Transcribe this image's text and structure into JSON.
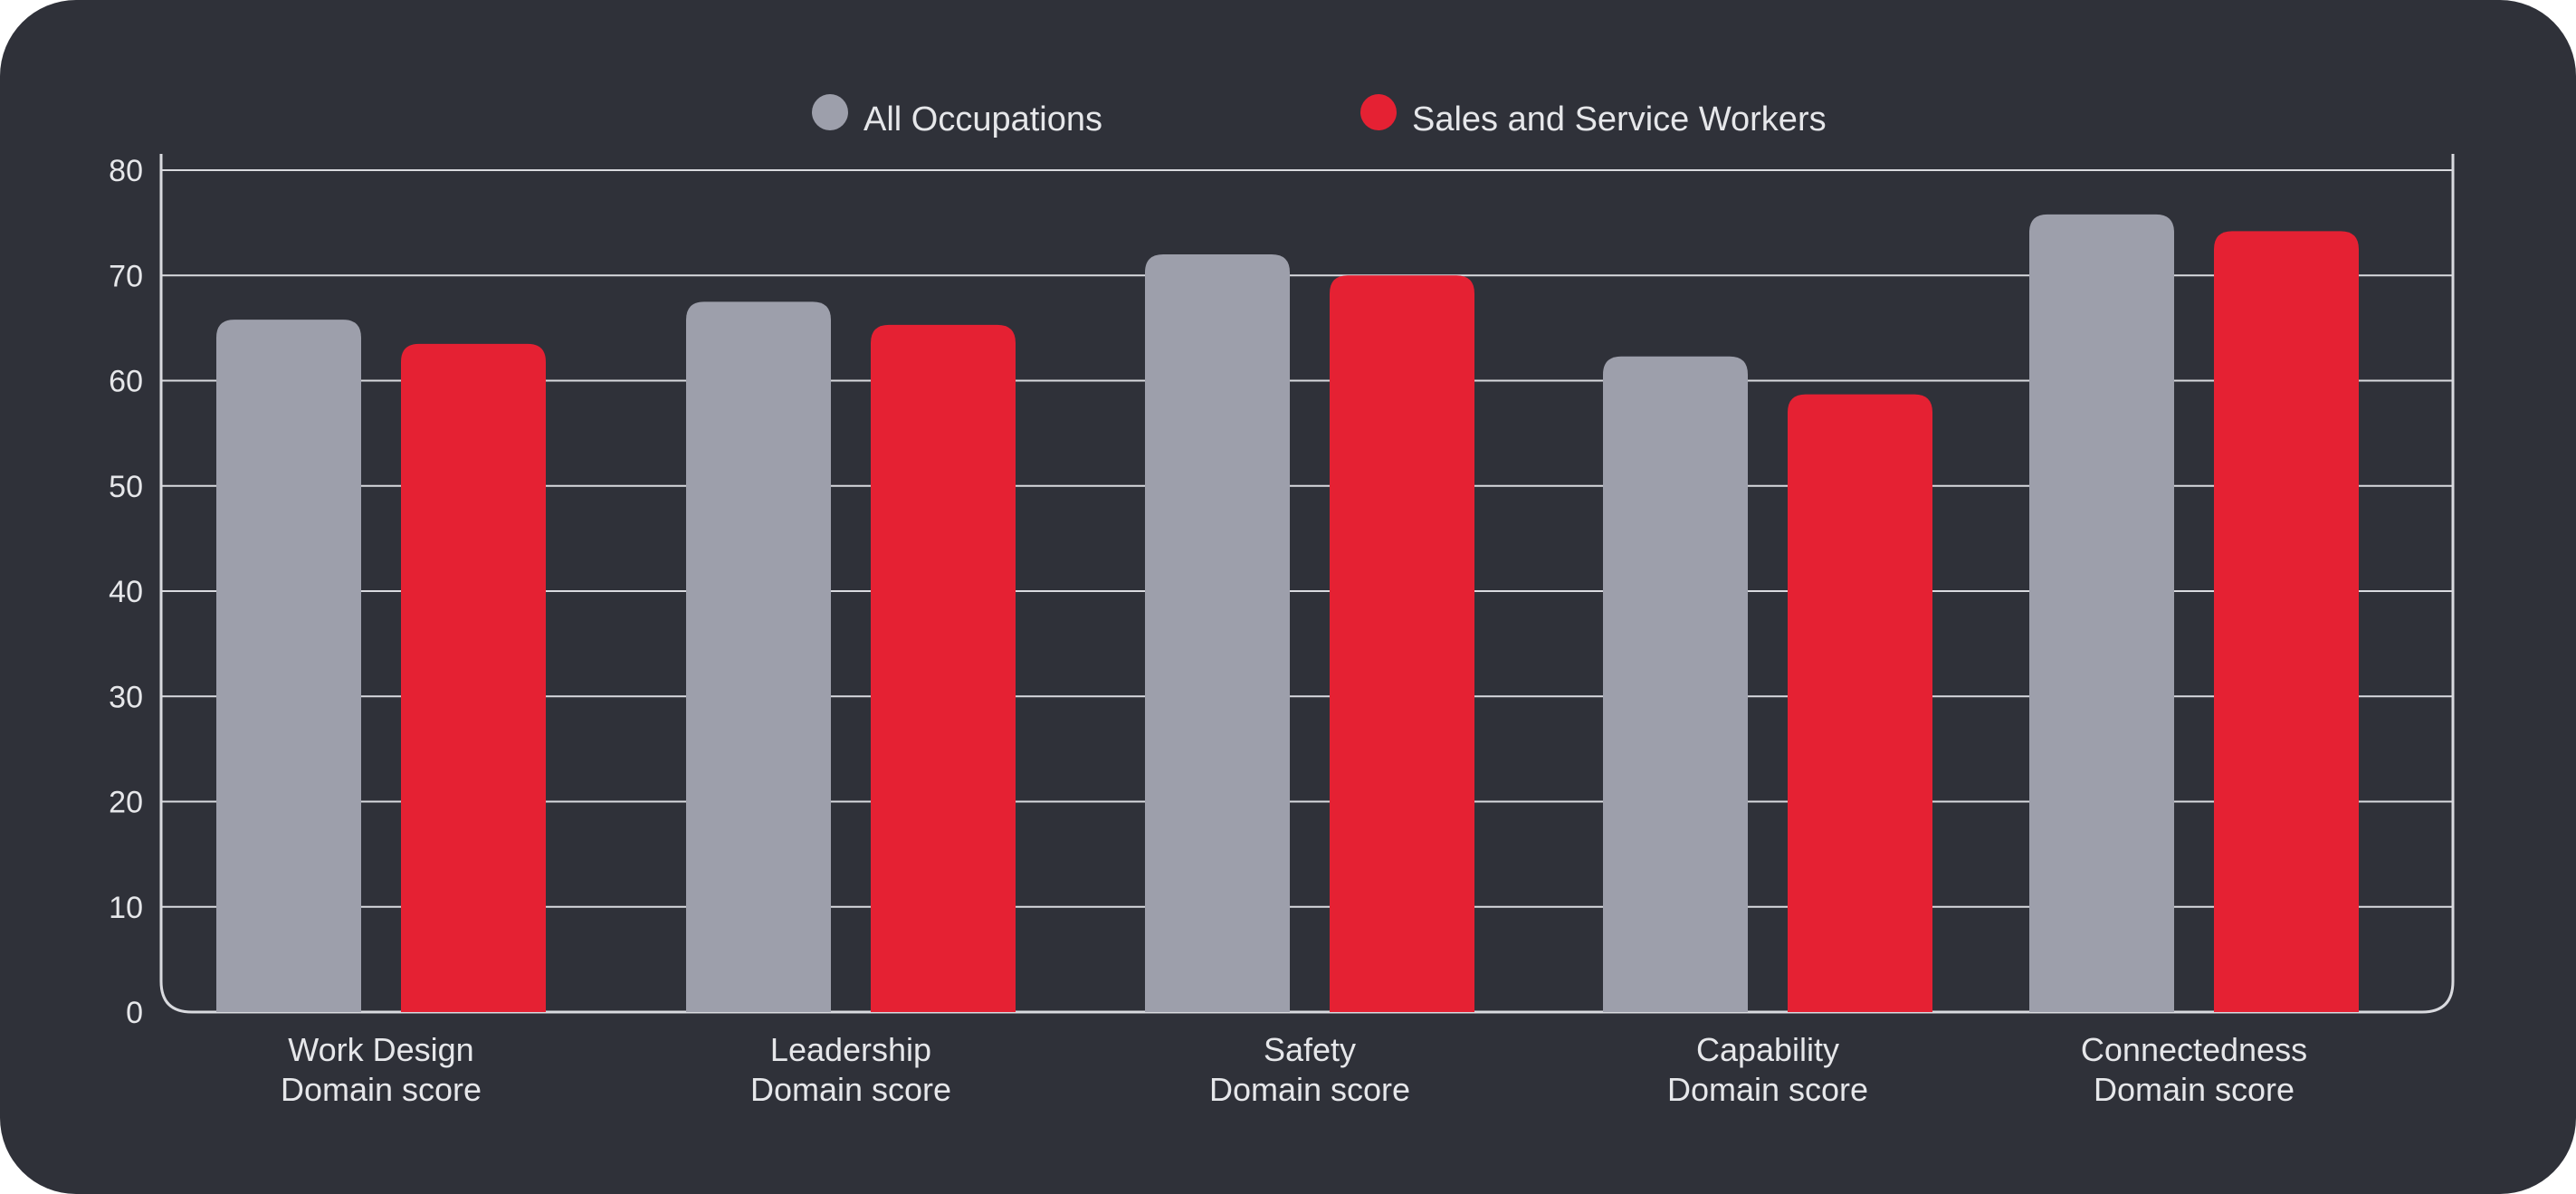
{
  "chart_data": {
    "type": "bar",
    "categories": [
      [
        "Work Design",
        "Domain score"
      ],
      [
        "Leadership",
        "Domain score"
      ],
      [
        "Safety",
        "Domain score"
      ],
      [
        "Capability",
        "Domain score"
      ],
      [
        "Connectedness",
        "Domain score"
      ]
    ],
    "series": [
      {
        "name": "All Occupations",
        "color": "#9d9fab",
        "values": [
          65.8,
          67.5,
          72.0,
          62.3,
          75.8
        ]
      },
      {
        "name": "Sales and Service Workers",
        "color": "#e52133",
        "values": [
          63.5,
          65.3,
          70.0,
          58.7,
          74.2
        ]
      }
    ],
    "y_ticks": [
      0,
      10,
      20,
      30,
      40,
      50,
      60,
      70,
      80
    ],
    "ylim": [
      0,
      80
    ],
    "grid": true,
    "legend_position": "top-center",
    "background": "#2f3139"
  }
}
